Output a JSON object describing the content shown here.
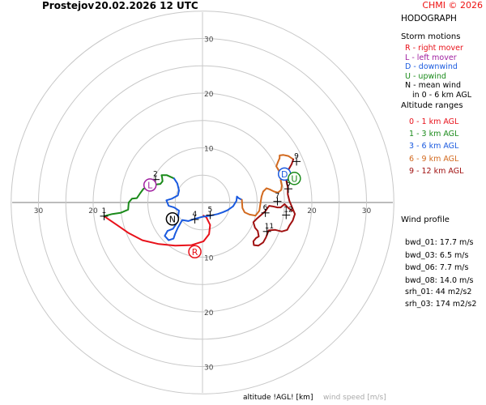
{
  "header": {
    "location": "Prostejov",
    "datetime": "20.02.2026 12 UTC",
    "credit": "CHMI © 2026"
  },
  "chart_data": {
    "type": "line",
    "title": "HODOGRAPH",
    "units": "m/s",
    "rings": [
      5,
      10,
      15,
      20,
      25,
      30,
      35
    ],
    "ring_labels": [
      "10",
      "20",
      "30"
    ],
    "axis_labels": {
      "left": [
        "30",
        "20"
      ],
      "right": [
        "20",
        "30"
      ]
    },
    "xlim": [
      -37,
      37
    ],
    "ylim": [
      -37,
      37
    ],
    "grid": true,
    "series": [
      {
        "name": "0 - 1 km AGL",
        "color": "#e8111a",
        "points": [
          [
            -18,
            -2.5
          ],
          [
            -17,
            -3.2
          ],
          [
            -15.5,
            -4.2
          ],
          [
            -13.5,
            -5.6
          ],
          [
            -11,
            -6.9
          ],
          [
            -8,
            -7.6
          ],
          [
            -5,
            -7.9
          ],
          [
            -2,
            -7.8
          ],
          [
            0.2,
            -7.1
          ],
          [
            1.2,
            -5.8
          ],
          [
            1.4,
            -4.1
          ],
          [
            0.7,
            -2.7
          ],
          [
            0.2,
            -2.4
          ]
        ]
      },
      {
        "name": "1 - 3 km AGL",
        "color": "#1a8a1a",
        "points": [
          [
            -18,
            -2.5
          ],
          [
            -16.5,
            -2.1
          ],
          [
            -15,
            -1.9
          ],
          [
            -13.6,
            -1.3
          ],
          [
            -13.5,
            0
          ],
          [
            -12.9,
            0.7
          ],
          [
            -12,
            0.8
          ],
          [
            -11.4,
            1.7
          ],
          [
            -10.8,
            2.5
          ],
          [
            -10.2,
            2.8
          ],
          [
            -9.5,
            3.1
          ],
          [
            -8.5,
            3.3
          ],
          [
            -7.7,
            3.4
          ],
          [
            -7.3,
            3.9
          ],
          [
            -7.4,
            4.6
          ],
          [
            -7.5,
            5.0
          ],
          [
            -6.5,
            5.0
          ],
          [
            -5.2,
            4.4
          ]
        ]
      },
      {
        "name": "3 - 6 km AGL",
        "color": "#1a5adf",
        "points": [
          [
            -5.2,
            4.4
          ],
          [
            -4.6,
            3.5
          ],
          [
            -4.3,
            2.2
          ],
          [
            -4.5,
            1.3
          ],
          [
            -5.6,
            0.7
          ],
          [
            -6.6,
            0.4
          ],
          [
            -6.2,
            -0.6
          ],
          [
            -5.2,
            -0.9
          ],
          [
            -4.3,
            -1.5
          ],
          [
            -4.5,
            -2.8
          ],
          [
            -4.8,
            -3.9
          ],
          [
            -5.4,
            -4.8
          ],
          [
            -6.4,
            -5.2
          ],
          [
            -6.9,
            -6.1
          ],
          [
            -6.2,
            -6.9
          ],
          [
            -5.3,
            -6.6
          ],
          [
            -5,
            -5.7
          ],
          [
            -4.5,
            -4.6
          ],
          [
            -3.7,
            -3.2
          ],
          [
            -2.6,
            -3.4
          ],
          [
            -1.5,
            -3.0
          ],
          [
            0,
            -2.6
          ],
          [
            1.5,
            -2.4
          ],
          [
            2.8,
            -2.1
          ],
          [
            3.7,
            -1.8
          ],
          [
            4.6,
            -1.4
          ],
          [
            5.6,
            -0.7
          ],
          [
            6.2,
            0.3
          ],
          [
            6.3,
            1.1
          ],
          [
            6.6,
            0.8
          ],
          [
            7.2,
            0.5
          ]
        ]
      },
      {
        "name": "6 - 9 km AGL",
        "color": "#d2691e",
        "points": [
          [
            7.2,
            0.5
          ],
          [
            7.3,
            -1.0
          ],
          [
            7.7,
            -1.8
          ],
          [
            8.6,
            -2.2
          ],
          [
            9.7,
            -2.4
          ],
          [
            10.4,
            -1.5
          ],
          [
            10.6,
            -0.1
          ],
          [
            10.8,
            1.1
          ],
          [
            11.1,
            2.0
          ],
          [
            11.7,
            2.6
          ],
          [
            12.3,
            2.4
          ],
          [
            13.1,
            2.0
          ],
          [
            13.8,
            1.8
          ],
          [
            14.4,
            2.3
          ],
          [
            14.5,
            3.1
          ],
          [
            14.3,
            4.1
          ],
          [
            14.6,
            5.1
          ],
          [
            14.0,
            5.8
          ],
          [
            13.5,
            6.6
          ],
          [
            13.8,
            7.4
          ],
          [
            14.1,
            8.1
          ],
          [
            14.1,
            8.6
          ],
          [
            14.8,
            8.7
          ],
          [
            15.7,
            8.5
          ],
          [
            16.6,
            7.9
          ]
        ]
      },
      {
        "name": "9 - 12 km AGL",
        "color": "#a01010",
        "points": [
          [
            16.6,
            7.9
          ],
          [
            16.3,
            7.0
          ],
          [
            15.8,
            6.1
          ],
          [
            15.4,
            5.4
          ],
          [
            15.3,
            4.1
          ],
          [
            15.6,
            2.8
          ],
          [
            15.6,
            1.5
          ],
          [
            15.9,
            0.3
          ],
          [
            16.4,
            -0.9
          ],
          [
            16.9,
            -2.1
          ],
          [
            16.5,
            -3.3
          ],
          [
            15.9,
            -4.2
          ],
          [
            15.5,
            -5.0
          ],
          [
            14.5,
            -5.3
          ],
          [
            13.3,
            -5.0
          ],
          [
            12.1,
            -5.1
          ],
          [
            11.6,
            -6.4
          ],
          [
            11.1,
            -7.3
          ],
          [
            10.2,
            -7.9
          ],
          [
            9.4,
            -7.8
          ],
          [
            9.3,
            -7.1
          ],
          [
            9.8,
            -6.5
          ],
          [
            10.3,
            -6.2
          ],
          [
            10.1,
            -5.2
          ],
          [
            9.6,
            -4.6
          ],
          [
            9.3,
            -3.6
          ],
          [
            10.0,
            -2.9
          ],
          [
            10.9,
            -2.1
          ],
          [
            11.5,
            -1.6
          ],
          [
            11.9,
            -1.0
          ],
          [
            12.2,
            -0.6
          ],
          [
            12.8,
            -0.7
          ],
          [
            13.7,
            -0.9
          ],
          [
            14.3,
            -0.9
          ],
          [
            15.0,
            -0.3
          ],
          [
            15.7,
            -1.0
          ],
          [
            16.4,
            -1.5
          ]
        ]
      }
    ],
    "height_markers": [
      {
        "label": "1",
        "x": -18,
        "y": -2.5
      },
      {
        "label": "2",
        "x": -8.6,
        "y": 4.2
      },
      {
        "label": "4",
        "x": -1.4,
        "y": -3.1
      },
      {
        "label": "5",
        "x": 1.4,
        "y": -2.3
      },
      {
        "label": "6",
        "x": 11.5,
        "y": -1.9
      },
      {
        "label": "7",
        "x": 13.7,
        "y": 0.2
      },
      {
        "label": "8",
        "x": 15.7,
        "y": 2.5
      },
      {
        "label": "9",
        "x": 17.2,
        "y": 7.5
      },
      {
        "label": "11",
        "x": 11.8,
        "y": -5.3
      },
      {
        "label": "12",
        "x": 15.3,
        "y": -2.3
      }
    ],
    "storm_motions": [
      {
        "code": "R",
        "x": -1.4,
        "y": -9.0,
        "color": "#e8111a"
      },
      {
        "code": "L",
        "x": -9.6,
        "y": 3.2,
        "color": "#a020a0"
      },
      {
        "code": "D",
        "x": 15.0,
        "y": 5.2,
        "color": "#1a5adf"
      },
      {
        "code": "U",
        "x": 16.8,
        "y": 4.4,
        "color": "#1a8a1a"
      },
      {
        "code": "N",
        "x": -5.5,
        "y": -3.0,
        "color": "#000000"
      }
    ]
  },
  "legend": {
    "title": "HODOGRAPH",
    "storm_title": "Storm motions",
    "storm_items": [
      {
        "text": "R - right mover",
        "color": "#e8111a"
      },
      {
        "text": "L - left mover",
        "color": "#a020a0"
      },
      {
        "text": "D - downwind",
        "color": "#1a5adf"
      },
      {
        "text": "U - upwind",
        "color": "#1a8a1a"
      },
      {
        "text": "N - mean wind",
        "color": "#000000"
      },
      {
        "text": "in 0 - 6 km AGL",
        "color": "#000000"
      }
    ],
    "altitude_title": "Altitude ranges",
    "altitude_items": [
      {
        "text": "0 - 1 km AGL",
        "color": "#e8111a"
      },
      {
        "text": "1 - 3 km AGL",
        "color": "#1a8a1a"
      },
      {
        "text": "3 - 6 km AGL",
        "color": "#1a5adf"
      },
      {
        "text": "6 - 9 km AGL",
        "color": "#d2691e"
      },
      {
        "text": "9 - 12 km AGL",
        "color": "#a01010"
      }
    ],
    "wind_title": "Wind profile",
    "wind_items": [
      "bwd_01: 17.7 m/s",
      "bwd_03: 6.5 m/s",
      "bwd_06: 7.7 m/s",
      "bwd_08: 14.0 m/s",
      "srh_01: 44 m2/s2",
      "srh_03: 174 m2/s2"
    ]
  },
  "footer": {
    "altitude_label": "altitude !AGL! [km]",
    "speed_label": "wind speed [m/s]"
  }
}
